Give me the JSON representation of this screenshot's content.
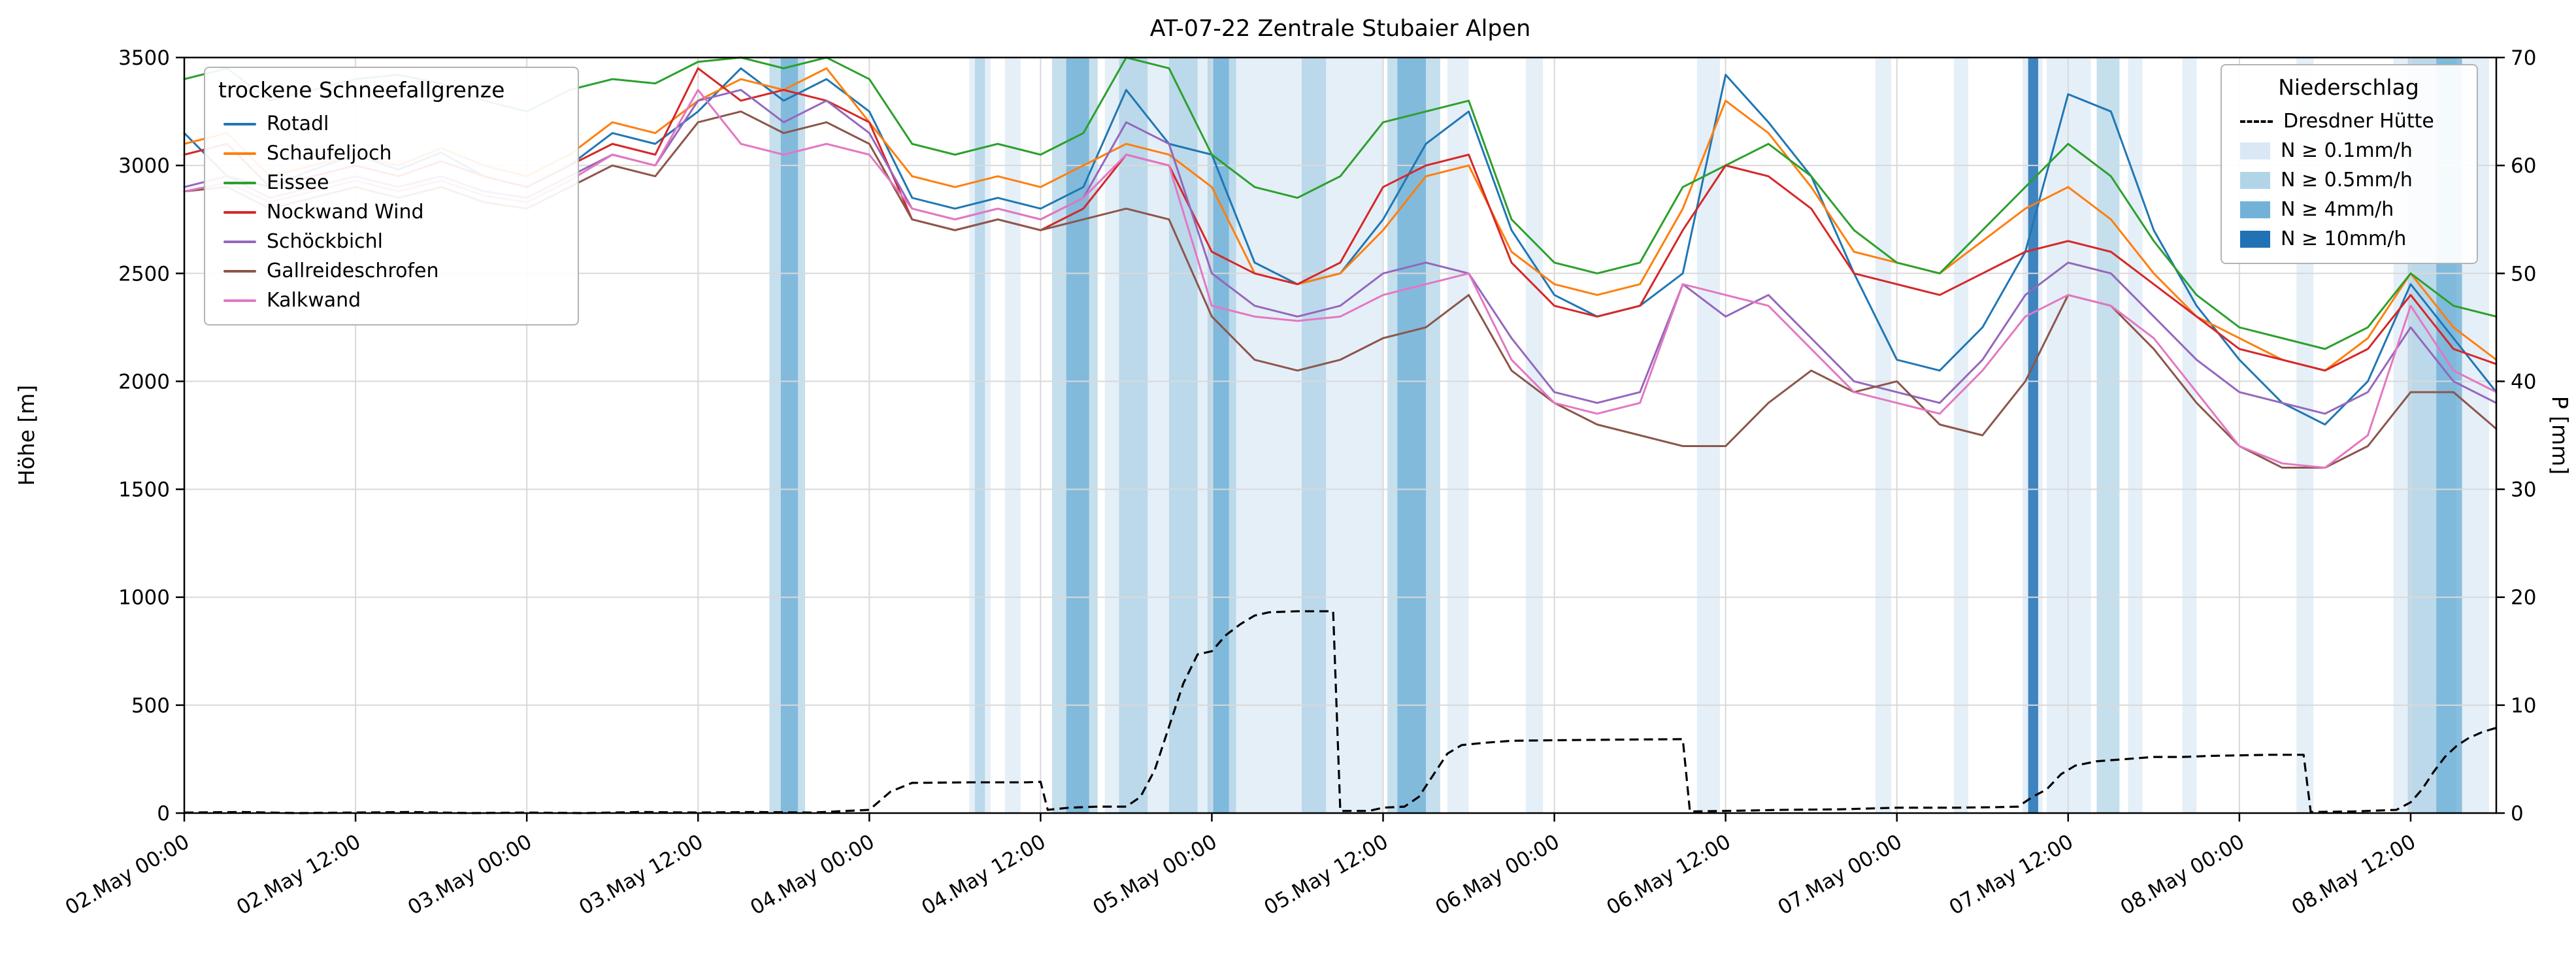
{
  "title": "AT-07-22 Zentrale Stubaier Alpen",
  "axes": {
    "y_left_label": "Höhe [m]",
    "y_right_label": "P [mm]",
    "y_left_ticks": [
      0,
      500,
      1000,
      1500,
      2000,
      2500,
      3000,
      3500
    ],
    "y_right_ticks": [
      0,
      10,
      20,
      30,
      40,
      50,
      60,
      70
    ],
    "x_tick_hours": [
      0,
      12,
      24,
      36,
      48,
      60,
      72,
      84,
      96,
      108,
      120,
      132,
      144,
      156
    ],
    "x_tick_labels": [
      "02.May 00:00",
      "02.May 12:00",
      "03.May 00:00",
      "03.May 12:00",
      "04.May 00:00",
      "04.May 12:00",
      "05.May 00:00",
      "05.May 12:00",
      "06.May 00:00",
      "06.May 12:00",
      "07.May 00:00",
      "07.May 12:00",
      "08.May 00:00",
      "08.May 12:00"
    ]
  },
  "chart_data": {
    "type": "line",
    "title": "AT-07-22 Zentrale Stubaier Alpen",
    "x_unit": "hours since 02.May 00:00",
    "x_range": [
      0,
      162
    ],
    "y_left_range": [
      0,
      3500
    ],
    "y_right_range": [
      0,
      70
    ],
    "grid": true,
    "snowline_legend_title": "trockene Schneefallgrenze",
    "precip_legend_title": "Niederschlag",
    "series_t_step": 3,
    "series": [
      {
        "name": "Rotadl",
        "color": "#1f77b4",
        "values": [
          3150,
          2950,
          2900,
          2980,
          3050,
          2980,
          3060,
          2950,
          2900,
          3000,
          3150,
          3100,
          3250,
          3450,
          3300,
          3400,
          3250,
          2850,
          2800,
          2850,
          2800,
          2900,
          3350,
          3100,
          3050,
          2550,
          2450,
          2500,
          2750,
          3100,
          3250,
          2700,
          2400,
          2300,
          2350,
          2500,
          3420,
          3200,
          2950,
          2500,
          2100,
          2050,
          2250,
          2600,
          3330,
          3250,
          2700,
          2350,
          2100,
          1900,
          1800,
          2000,
          2450,
          2200,
          1950
        ]
      },
      {
        "name": "Schaufeljoch",
        "color": "#ff7f0e",
        "values": [
          3100,
          3150,
          2950,
          3000,
          3050,
          3000,
          3080,
          3000,
          2950,
          3050,
          3200,
          3150,
          3300,
          3400,
          3350,
          3450,
          3200,
          2950,
          2900,
          2950,
          2900,
          3000,
          3100,
          3050,
          2900,
          2500,
          2450,
          2500,
          2700,
          2950,
          3000,
          2600,
          2450,
          2400,
          2450,
          2800,
          3300,
          3150,
          2900,
          2600,
          2550,
          2500,
          2650,
          2800,
          2900,
          2750,
          2500,
          2300,
          2200,
          2100,
          2050,
          2200,
          2500,
          2250,
          2100
        ]
      },
      {
        "name": "Eissee",
        "color": "#2ca02c",
        "values": [
          3400,
          3450,
          3300,
          3350,
          3400,
          3420,
          3380,
          3300,
          3250,
          3350,
          3400,
          3380,
          3480,
          3500,
          3450,
          3500,
          3400,
          3100,
          3050,
          3100,
          3050,
          3150,
          3500,
          3450,
          3050,
          2900,
          2850,
          2950,
          3200,
          3250,
          3300,
          2750,
          2550,
          2500,
          2550,
          2900,
          3000,
          3100,
          2950,
          2700,
          2550,
          2500,
          2700,
          2900,
          3100,
          2950,
          2650,
          2400,
          2250,
          2200,
          2150,
          2250,
          2500,
          2350,
          2300
        ]
      },
      {
        "name": "Nockwand Wind",
        "color": "#d62728",
        "values": [
          3050,
          3100,
          2900,
          2950,
          3000,
          2950,
          3020,
          2950,
          2900,
          3000,
          3100,
          3050,
          3450,
          3300,
          3350,
          3300,
          3200,
          2750,
          2700,
          2750,
          2700,
          2800,
          3050,
          3000,
          2600,
          2500,
          2450,
          2550,
          2900,
          3000,
          3050,
          2550,
          2350,
          2300,
          2350,
          2700,
          3000,
          2950,
          2800,
          2500,
          2450,
          2400,
          2500,
          2600,
          2650,
          2600,
          2450,
          2300,
          2150,
          2100,
          2050,
          2150,
          2400,
          2150,
          2080
        ]
      },
      {
        "name": "Schöckbichl",
        "color": "#9467bd",
        "values": [
          2900,
          2950,
          2850,
          2900,
          2950,
          2900,
          2950,
          2880,
          2850,
          2950,
          3050,
          3000,
          3300,
          3350,
          3200,
          3300,
          3150,
          2800,
          2750,
          2800,
          2750,
          2850,
          3200,
          3100,
          2500,
          2350,
          2300,
          2350,
          2500,
          2550,
          2500,
          2200,
          1950,
          1900,
          1950,
          2450,
          2300,
          2400,
          2200,
          2000,
          1950,
          1900,
          2100,
          2400,
          2550,
          2500,
          2300,
          2100,
          1950,
          1900,
          1850,
          1950,
          2250,
          2000,
          1900
        ]
      },
      {
        "name": "Gallreideschrofen",
        "color": "#8c564b",
        "values": [
          2880,
          2900,
          2800,
          2850,
          2900,
          2850,
          2900,
          2830,
          2800,
          2900,
          3000,
          2950,
          3200,
          3250,
          3150,
          3200,
          3100,
          2750,
          2700,
          2750,
          2700,
          2750,
          2800,
          2750,
          2300,
          2100,
          2050,
          2100,
          2200,
          2250,
          2400,
          2050,
          1900,
          1800,
          1750,
          1700,
          1700,
          1900,
          2050,
          1950,
          2000,
          1800,
          1750,
          2000,
          2400,
          2350,
          2150,
          1900,
          1700,
          1600,
          1600,
          1700,
          1950,
          1950,
          1780
        ]
      },
      {
        "name": "Kalkwand",
        "color": "#e377c2",
        "values": [
          2880,
          2920,
          2830,
          2880,
          2930,
          2880,
          2930,
          2860,
          2830,
          2930,
          3050,
          3000,
          3350,
          3100,
          3050,
          3100,
          3050,
          2800,
          2750,
          2800,
          2750,
          2850,
          3050,
          3000,
          2350,
          2300,
          2280,
          2300,
          2400,
          2450,
          2500,
          2100,
          1900,
          1850,
          1900,
          2450,
          2400,
          2350,
          2150,
          1950,
          1900,
          1850,
          2050,
          2300,
          2400,
          2350,
          2200,
          1950,
          1700,
          1620,
          1600,
          1750,
          2350,
          2050,
          1950
        ]
      }
    ],
    "precip_line": {
      "name": "Dresdner Hütte",
      "color": "#000000",
      "style": "dashed",
      "axis": "right",
      "points": [
        [
          0,
          0.05
        ],
        [
          4,
          0.1
        ],
        [
          8,
          0
        ],
        [
          12,
          0.05
        ],
        [
          16,
          0.1
        ],
        [
          20,
          0
        ],
        [
          24,
          0.05
        ],
        [
          28,
          0
        ],
        [
          32,
          0.1
        ],
        [
          36,
          0.05
        ],
        [
          40,
          0.1
        ],
        [
          44,
          0.05
        ],
        [
          48,
          0.3
        ],
        [
          49.5,
          2
        ],
        [
          51,
          2.8
        ],
        [
          55,
          2.85
        ],
        [
          59,
          2.85
        ],
        [
          60,
          2.9
        ],
        [
          60.5,
          0.3
        ],
        [
          62,
          0.5
        ],
        [
          64,
          0.6
        ],
        [
          66,
          0.6
        ],
        [
          67,
          1.5
        ],
        [
          68,
          4
        ],
        [
          69,
          8
        ],
        [
          70,
          12
        ],
        [
          71,
          14.7
        ],
        [
          72,
          15
        ],
        [
          73,
          16.5
        ],
        [
          74,
          17.5
        ],
        [
          75,
          18.3
        ],
        [
          76,
          18.6
        ],
        [
          78,
          18.7
        ],
        [
          80.5,
          18.7
        ],
        [
          81,
          0.2
        ],
        [
          83,
          0.2
        ],
        [
          84,
          0.5
        ],
        [
          85.5,
          0.6
        ],
        [
          86.5,
          1.5
        ],
        [
          87.5,
          3.5
        ],
        [
          88.5,
          5.5
        ],
        [
          89.5,
          6.3
        ],
        [
          91,
          6.5
        ],
        [
          93,
          6.7
        ],
        [
          96,
          6.75
        ],
        [
          100,
          6.8
        ],
        [
          105,
          6.85
        ],
        [
          105.5,
          0.15
        ],
        [
          108,
          0.2
        ],
        [
          112,
          0.3
        ],
        [
          116,
          0.35
        ],
        [
          120,
          0.5
        ],
        [
          124,
          0.5
        ],
        [
          127,
          0.55
        ],
        [
          128.5,
          0.6
        ],
        [
          129.5,
          1.5
        ],
        [
          130.5,
          2.2
        ],
        [
          131.5,
          3.6
        ],
        [
          132.5,
          4.4
        ],
        [
          134,
          4.8
        ],
        [
          136,
          5
        ],
        [
          138,
          5.2
        ],
        [
          140,
          5.2
        ],
        [
          142,
          5.3
        ],
        [
          144,
          5.35
        ],
        [
          146,
          5.4
        ],
        [
          148.5,
          5.4
        ],
        [
          149,
          0.1
        ],
        [
          152,
          0.15
        ],
        [
          155,
          0.3
        ],
        [
          156,
          1
        ],
        [
          156.8,
          2.2
        ],
        [
          157.6,
          3.8
        ],
        [
          158.4,
          5.2
        ],
        [
          159.2,
          6.2
        ],
        [
          160,
          6.9
        ],
        [
          161,
          7.5
        ],
        [
          162,
          7.9
        ]
      ]
    },
    "precip_levels": [
      {
        "label": "N ≥ 0.1mm/h",
        "color": "#c6dbef",
        "opacity": 0.45
      },
      {
        "label": "N ≥ 0.5mm/h",
        "color": "#9ecae1",
        "opacity": 0.6
      },
      {
        "label": "N ≥ 4mm/h",
        "color": "#6baed6",
        "opacity": 0.75
      },
      {
        "label": "N ≥ 10mm/h",
        "color": "#2171b5",
        "opacity": 0.85
      }
    ],
    "precip_bands": [
      [
        41,
        43.5,
        1
      ],
      [
        41.8,
        43,
        2
      ],
      [
        55,
        56.5,
        0
      ],
      [
        55.4,
        56.1,
        1
      ],
      [
        57.5,
        58.6,
        0
      ],
      [
        60.8,
        64,
        1
      ],
      [
        61.8,
        63.4,
        2
      ],
      [
        64.5,
        84,
        0
      ],
      [
        65.5,
        67.5,
        1
      ],
      [
        69,
        71,
        1
      ],
      [
        71.7,
        73.7,
        1
      ],
      [
        72.1,
        73.2,
        2
      ],
      [
        78.3,
        80,
        1
      ],
      [
        84.3,
        88,
        1
      ],
      [
        85,
        87,
        2
      ],
      [
        88.5,
        90,
        0
      ],
      [
        94,
        95.2,
        0
      ],
      [
        106,
        107.6,
        0
      ],
      [
        118.5,
        119.6,
        0
      ],
      [
        124,
        125,
        0
      ],
      [
        128.8,
        130.2,
        0
      ],
      [
        129.2,
        129.9,
        3
      ],
      [
        130.5,
        133.6,
        0
      ],
      [
        134,
        135.6,
        1
      ],
      [
        136.2,
        137.2,
        0
      ],
      [
        140,
        141,
        0
      ],
      [
        148,
        149.2,
        0
      ],
      [
        154.8,
        161.5,
        0
      ],
      [
        155.8,
        159.2,
        1
      ],
      [
        157.8,
        159.6,
        2
      ]
    ]
  }
}
